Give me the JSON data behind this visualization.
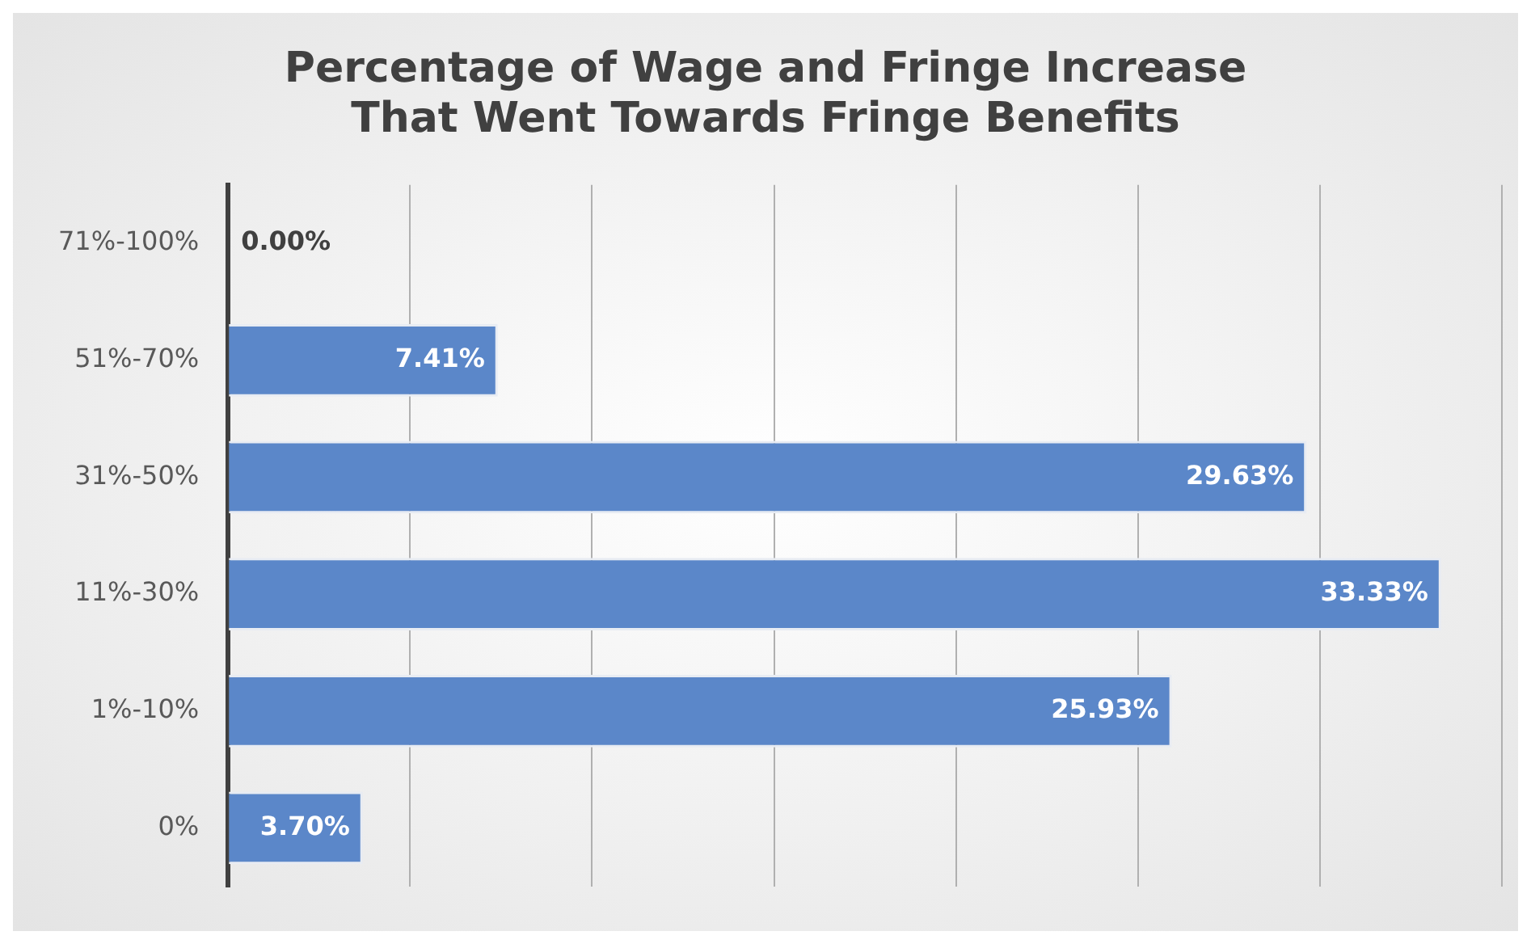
{
  "chart_data": {
    "type": "bar",
    "orientation": "horizontal",
    "title": "Percentage of Wage and Fringe Increase That Went Towards Fringe Benefits",
    "categories": [
      "71%-100%",
      "51%-70%",
      "31%-50%",
      "11%-30%",
      "1%-10%",
      "0%"
    ],
    "values": [
      0,
      7.41,
      29.63,
      33.33,
      25.93,
      3.7
    ],
    "value_labels": [
      "0.00%",
      "7.41%",
      "29.63%",
      "33.33%",
      "25.93%",
      "3.70%"
    ],
    "color": "#5b87c9",
    "xlim": [
      0,
      35
    ],
    "xticks": [
      {
        "value": 0,
        "label": null
      },
      {
        "value": 5,
        "label": null
      },
      {
        "value": 10,
        "label": null
      },
      {
        "value": 15,
        "label": null
      },
      {
        "value": 20,
        "label": null
      },
      {
        "value": 25,
        "label": null
      },
      {
        "value": 30,
        "label": null
      },
      {
        "value": 35,
        "label": null
      }
    ],
    "grid": "x",
    "tick_labels": "y"
  }
}
